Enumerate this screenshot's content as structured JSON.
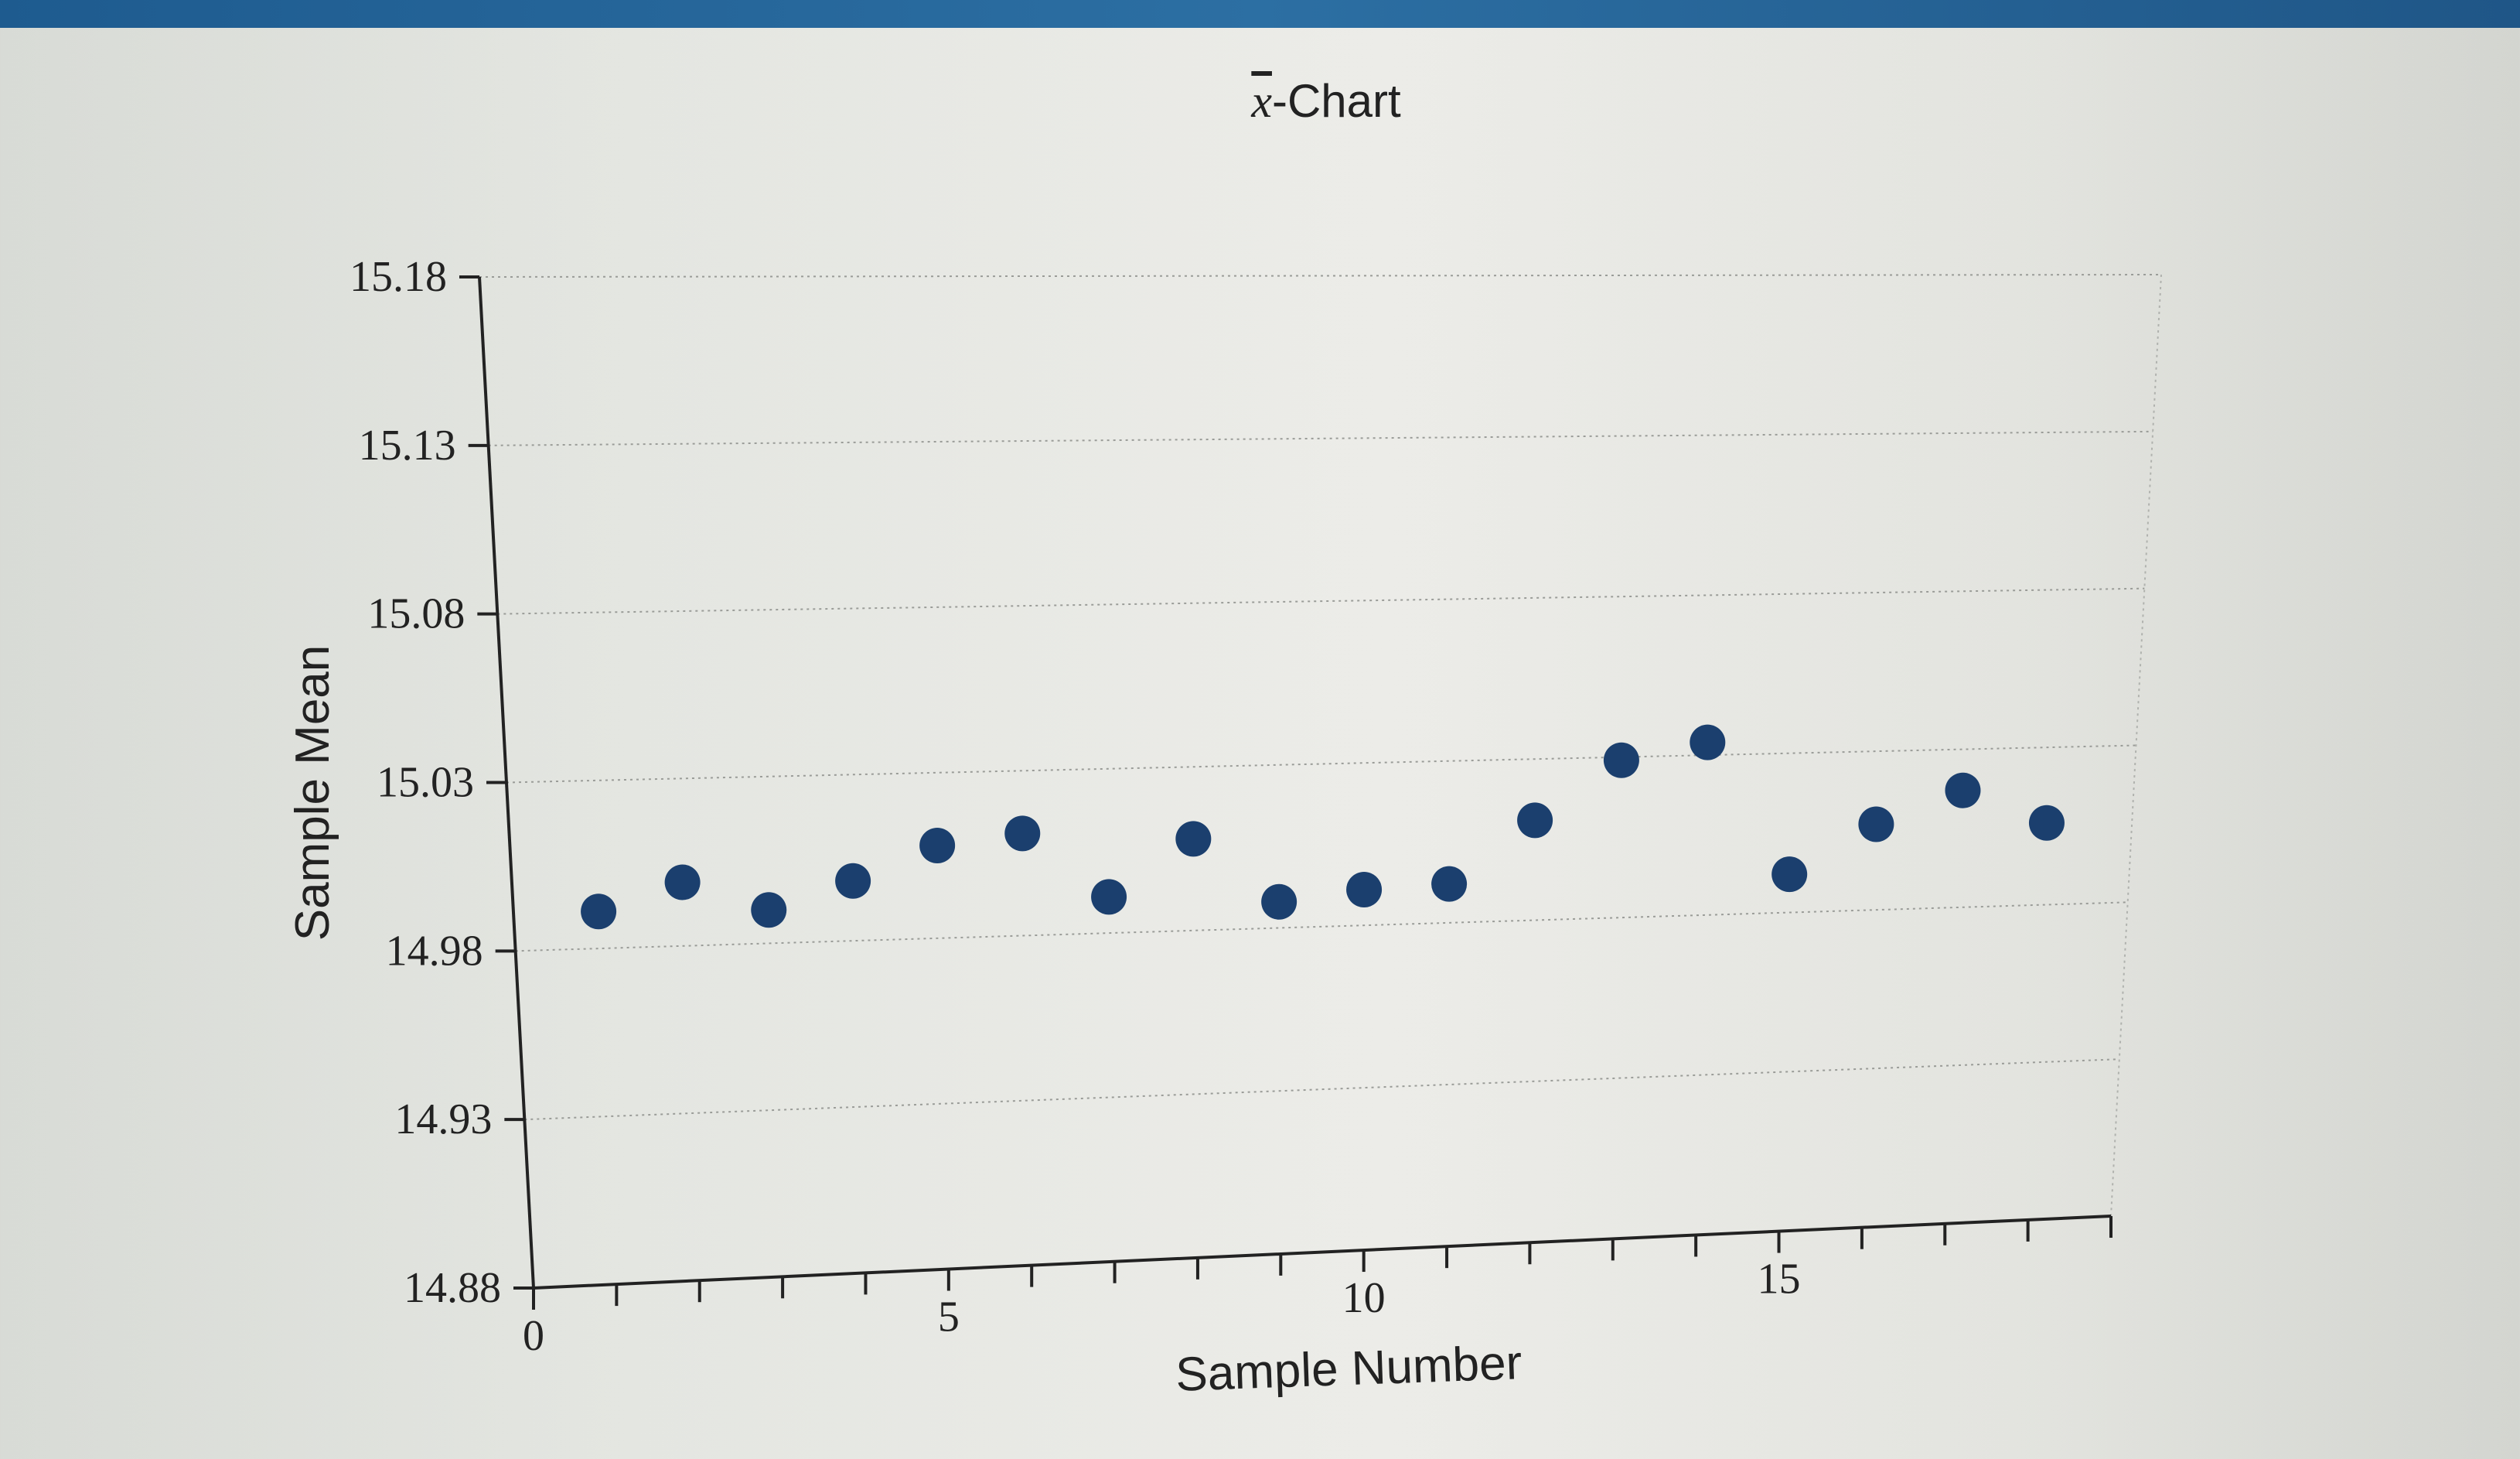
{
  "chart_data": {
    "type": "scatter",
    "title_symbol": "x",
    "title_text": "-Chart",
    "xlabel": "Sample Number",
    "ylabel": "Sample Mean",
    "xlim": [
      0,
      19
    ],
    "ylim": [
      14.88,
      15.18
    ],
    "y_ticks": [
      "15.18",
      "15.13",
      "15.08",
      "15.03",
      "14.98",
      "14.93",
      "14.88"
    ],
    "x_tick_labels": [
      {
        "x": 0,
        "label": "0"
      },
      {
        "x": 5,
        "label": "5"
      },
      {
        "x": 10,
        "label": "10"
      },
      {
        "x": 15,
        "label": "15"
      }
    ],
    "grid": "horizontal dotted",
    "point_color": "#1b3f6e",
    "x": [
      1,
      2,
      3,
      4,
      5,
      6,
      7,
      8,
      9,
      10,
      11,
      12,
      13,
      14,
      15,
      16,
      17,
      18
    ],
    "values": [
      14.991,
      14.999,
      14.99,
      14.998,
      15.008,
      15.011,
      14.991,
      15.008,
      14.988,
      14.991,
      14.992,
      15.011,
      15.029,
      15.034,
      14.992,
      15.007,
      15.017,
      15.006
    ]
  }
}
